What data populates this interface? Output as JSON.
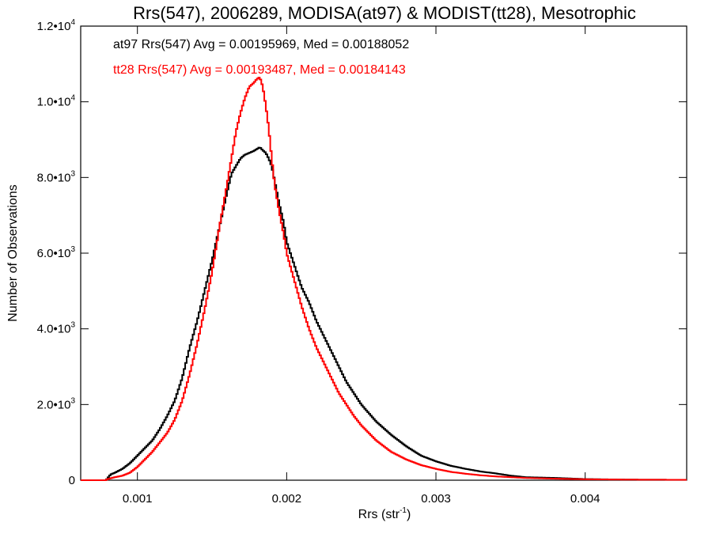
{
  "chart_data": {
    "type": "line",
    "title": "Rrs(547), 2006289, MODISA(at97) & MODIST(tt28), Mesotrophic",
    "xlabel": "Rrs (str",
    "xlabel_sup": "-1",
    "xlabel_close": ")",
    "ylabel": "Number of Observations",
    "xlim": [
      0.00062,
      0.00468
    ],
    "ylim": [
      0,
      12000
    ],
    "grid": false,
    "step": true,
    "x_ticks": [
      {
        "value": 0.001,
        "label": "0.001"
      },
      {
        "value": 0.002,
        "label": "0.002"
      },
      {
        "value": 0.003,
        "label": "0.003"
      },
      {
        "value": 0.004,
        "label": "0.004"
      }
    ],
    "y_ticks": [
      {
        "value": 0,
        "mant": "0",
        "exp": ""
      },
      {
        "value": 2000,
        "mant": "2.0•10",
        "exp": "3"
      },
      {
        "value": 4000,
        "mant": "4.0•10",
        "exp": "3"
      },
      {
        "value": 6000,
        "mant": "6.0•10",
        "exp": "3"
      },
      {
        "value": 8000,
        "mant": "8.0•10",
        "exp": "3"
      },
      {
        "value": 10000,
        "mant": "1.0•10",
        "exp": "4"
      },
      {
        "value": 12000,
        "mant": "1.2•10",
        "exp": "4"
      }
    ],
    "annotations": [
      {
        "text": "at97 Rrs(547) Avg = 0.00195969, Med = 0.00188052",
        "color": "#000000"
      },
      {
        "text": "tt28 Rrs(547) Avg = 0.00193487, Med = 0.00184143",
        "color": "#ff0000"
      }
    ],
    "series": [
      {
        "color": "#000000",
        "x": [
          0.00062,
          0.00079,
          0.0008,
          0.00082,
          0.00085,
          0.0009,
          0.00095,
          0.001,
          0.00105,
          0.0011,
          0.00115,
          0.0012,
          0.00125,
          0.0013,
          0.00135,
          0.0014,
          0.00145,
          0.0015,
          0.00155,
          0.0016,
          0.00163,
          0.00166,
          0.00169,
          0.00172,
          0.00175,
          0.00178,
          0.0018,
          0.00182,
          0.00184,
          0.00186,
          0.00188,
          0.0019,
          0.00192,
          0.00195,
          0.00198,
          0.002,
          0.00205,
          0.0021,
          0.00215,
          0.0022,
          0.00225,
          0.0023,
          0.00235,
          0.0024,
          0.00245,
          0.0025,
          0.0026,
          0.0027,
          0.0028,
          0.0029,
          0.003,
          0.0031,
          0.0032,
          0.0033,
          0.0034,
          0.0035,
          0.0036,
          0.0038,
          0.004,
          0.0043,
          0.00468
        ],
        "y": [
          0,
          0,
          50,
          150,
          200,
          300,
          450,
          650,
          850,
          1050,
          1350,
          1700,
          2100,
          2700,
          3500,
          4200,
          5000,
          5800,
          6700,
          7600,
          8100,
          8300,
          8500,
          8600,
          8650,
          8700,
          8750,
          8800,
          8720,
          8650,
          8500,
          8300,
          7900,
          7300,
          6800,
          6300,
          5700,
          5100,
          4700,
          4200,
          3800,
          3400,
          3000,
          2600,
          2300,
          2000,
          1550,
          1200,
          900,
          650,
          500,
          380,
          300,
          230,
          180,
          120,
          80,
          60,
          30,
          15,
          10
        ]
      },
      {
        "color": "#ff0000",
        "x": [
          0.00062,
          0.00079,
          0.0008,
          0.00085,
          0.0009,
          0.00095,
          0.001,
          0.00105,
          0.0011,
          0.00115,
          0.0012,
          0.00125,
          0.0013,
          0.00135,
          0.0014,
          0.00145,
          0.0015,
          0.00155,
          0.0016,
          0.00163,
          0.00166,
          0.00169,
          0.00172,
          0.00175,
          0.00178,
          0.0018,
          0.00182,
          0.00184,
          0.00186,
          0.00188,
          0.0019,
          0.00192,
          0.00195,
          0.00198,
          0.002,
          0.00205,
          0.0021,
          0.00215,
          0.0022,
          0.00225,
          0.0023,
          0.00235,
          0.0024,
          0.00245,
          0.0025,
          0.0026,
          0.0027,
          0.0028,
          0.0029,
          0.003,
          0.0031,
          0.0032,
          0.0033,
          0.0034,
          0.0035,
          0.0036,
          0.0038,
          0.004,
          0.0043,
          0.00468
        ],
        "y": [
          0,
          0,
          30,
          80,
          120,
          200,
          350,
          550,
          750,
          1000,
          1250,
          1600,
          2100,
          2800,
          3600,
          4500,
          5500,
          6700,
          7800,
          8500,
          9200,
          9700,
          10100,
          10400,
          10500,
          10600,
          10650,
          10400,
          9900,
          9300,
          8500,
          7800,
          7100,
          6500,
          6000,
          5300,
          4600,
          4000,
          3500,
          3100,
          2700,
          2300,
          2000,
          1700,
          1450,
          1050,
          750,
          550,
          400,
          300,
          220,
          170,
          130,
          100,
          80,
          60,
          40,
          25,
          15,
          10
        ]
      }
    ]
  }
}
